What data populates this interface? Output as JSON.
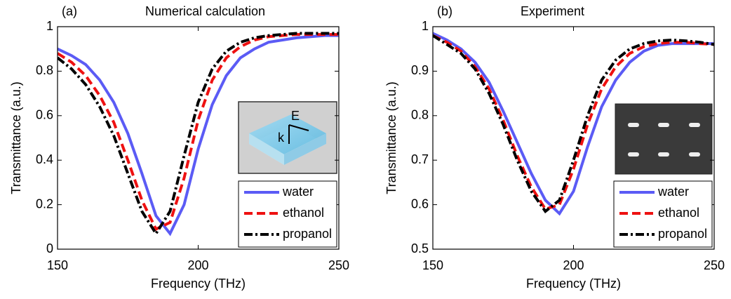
{
  "chart_data": [
    {
      "type": "line",
      "panel_label": "(a)",
      "title": "Numerical calculation",
      "x_label": "Frequency (THz)",
      "y_label": "Transmittance (a.u.)",
      "x": [
        150,
        155,
        160,
        165,
        170,
        175,
        180,
        185,
        190,
        195,
        200,
        205,
        210,
        215,
        220,
        225,
        230,
        235,
        240,
        245,
        250
      ],
      "series": [
        {
          "name": "water",
          "color": "#5b5bf5",
          "dash": "solid",
          "width": 4,
          "values": [
            0.9,
            0.87,
            0.83,
            0.76,
            0.66,
            0.52,
            0.34,
            0.15,
            0.07,
            0.2,
            0.45,
            0.65,
            0.78,
            0.86,
            0.9,
            0.93,
            0.94,
            0.95,
            0.955,
            0.96,
            0.96
          ]
        },
        {
          "name": "ethanol",
          "color": "#ee1111",
          "dash": "dashed",
          "width": 4,
          "values": [
            0.88,
            0.84,
            0.78,
            0.69,
            0.57,
            0.4,
            0.22,
            0.09,
            0.12,
            0.32,
            0.58,
            0.76,
            0.86,
            0.91,
            0.94,
            0.955,
            0.96,
            0.965,
            0.965,
            0.965,
            0.965
          ]
        },
        {
          "name": "propanol",
          "color": "#000000",
          "dash": "dashdot",
          "width": 4,
          "values": [
            0.86,
            0.81,
            0.74,
            0.64,
            0.51,
            0.34,
            0.17,
            0.07,
            0.17,
            0.42,
            0.66,
            0.81,
            0.89,
            0.93,
            0.95,
            0.96,
            0.965,
            0.97,
            0.97,
            0.97,
            0.97
          ]
        }
      ],
      "xlim": [
        150,
        250
      ],
      "xticks": [
        150,
        200,
        250
      ],
      "ylim": [
        0,
        1
      ],
      "yticks": [
        0,
        0.2,
        0.4,
        0.6,
        0.8,
        1
      ],
      "legend": "lower right",
      "inset_labels": [
        "E",
        "k"
      ]
    },
    {
      "type": "line",
      "panel_label": "(b)",
      "title": "Experiment",
      "x_label": "Frequency (THz)",
      "y_label": "Transmittance (a.u.)",
      "x": [
        150,
        155,
        160,
        165,
        170,
        175,
        180,
        185,
        190,
        195,
        200,
        205,
        210,
        215,
        220,
        225,
        230,
        235,
        240,
        245,
        250
      ],
      "series": [
        {
          "name": "water",
          "color": "#5b5bf5",
          "dash": "solid",
          "width": 4,
          "values": [
            0.985,
            0.97,
            0.95,
            0.92,
            0.875,
            0.81,
            0.74,
            0.67,
            0.61,
            0.58,
            0.63,
            0.73,
            0.82,
            0.88,
            0.92,
            0.945,
            0.958,
            0.962,
            0.962,
            0.962,
            0.962
          ]
        },
        {
          "name": "ethanol",
          "color": "#ee1111",
          "dash": "dashed",
          "width": 4,
          "values": [
            0.98,
            0.965,
            0.945,
            0.91,
            0.86,
            0.79,
            0.71,
            0.64,
            0.59,
            0.6,
            0.68,
            0.78,
            0.86,
            0.91,
            0.94,
            0.955,
            0.962,
            0.965,
            0.965,
            0.962,
            0.96
          ]
        },
        {
          "name": "propanol",
          "color": "#000000",
          "dash": "dashdot",
          "width": 4,
          "values": [
            0.98,
            0.96,
            0.94,
            0.905,
            0.85,
            0.78,
            0.7,
            0.63,
            0.585,
            0.61,
            0.7,
            0.8,
            0.88,
            0.925,
            0.95,
            0.962,
            0.968,
            0.97,
            0.968,
            0.965,
            0.96
          ]
        }
      ],
      "xlim": [
        150,
        250
      ],
      "xticks": [
        150,
        200,
        250
      ],
      "ylim": [
        0.5,
        1
      ],
      "yticks": [
        0.5,
        0.6,
        0.7,
        0.8,
        0.9,
        1
      ],
      "legend": "lower right"
    }
  ]
}
